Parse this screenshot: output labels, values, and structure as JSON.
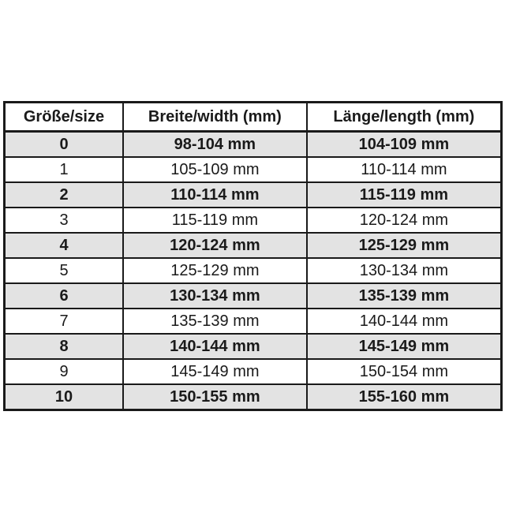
{
  "headers": [
    "Größe/size",
    "Breite/width (mm)",
    "Länge/length (mm)"
  ],
  "rows": [
    [
      "0",
      "98-104 mm",
      "104-109 mm"
    ],
    [
      "1",
      "105-109 mm",
      "110-114 mm"
    ],
    [
      "2",
      "110-114 mm",
      "115-119 mm"
    ],
    [
      "3",
      "115-119 mm",
      "120-124 mm"
    ],
    [
      "4",
      "120-124 mm",
      "125-129 mm"
    ],
    [
      "5",
      "125-129 mm",
      "130-134 mm"
    ],
    [
      "6",
      "130-134 mm",
      "135-139 mm"
    ],
    [
      "7",
      "135-139 mm",
      "140-144 mm"
    ],
    [
      "8",
      "140-144 mm",
      "145-149 mm"
    ],
    [
      "9",
      "145-149 mm",
      "150-154 mm"
    ],
    [
      "10",
      "150-155 mm",
      "155-160 mm"
    ]
  ],
  "colors": {
    "shaded_row": "#e3e3e3",
    "border": "#1a1a1a"
  }
}
